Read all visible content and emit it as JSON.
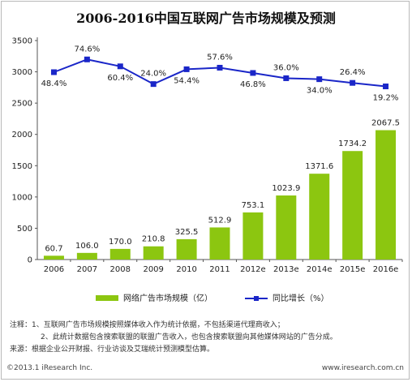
{
  "chart_data": {
    "type": "bar+line",
    "title": "2006-2016中国互联网广告市场规模及预测",
    "categories": [
      "2006",
      "2007",
      "2008",
      "2009",
      "2010",
      "2011",
      "2012e",
      "2013e",
      "2014e",
      "2015e",
      "2016e"
    ],
    "series": [
      {
        "name": "网络广告市场规模（亿）",
        "type": "bar",
        "axis": "left",
        "values": [
          60.7,
          106.0,
          170.0,
          210.8,
          325.5,
          512.9,
          753.1,
          1023.9,
          1371.6,
          1734.2,
          2067.5
        ],
        "labels": [
          "60.7",
          "106.0",
          "170.0",
          "210.8",
          "325.5",
          "512.9",
          "753.1",
          "1023.9",
          "1371.6",
          "1734.2",
          "2067.5"
        ],
        "color": "#8cc610"
      },
      {
        "name": "同比增长（%）",
        "type": "line",
        "axis": "right",
        "values": [
          48.4,
          74.6,
          60.4,
          24.0,
          54.4,
          57.6,
          46.8,
          36.0,
          34.0,
          26.4,
          19.2
        ],
        "labels": [
          "48.4%",
          "74.6%",
          "60.4%",
          "24.0%",
          "54.4%",
          "57.6%",
          "46.8%",
          "36.0%",
          "34.0%",
          "26.4%",
          "19.2%"
        ],
        "color": "#1a26c8"
      }
    ],
    "yticks": [
      0,
      500,
      1000,
      1500,
      2000,
      2500,
      3000,
      3500
    ],
    "ylim": [
      0,
      3500
    ],
    "grid": false,
    "legend_position": "bottom"
  },
  "notes": [
    "注释：1、互联网广告市场规模按照媒体收入作为统计依据，不包括渠道代理商收入；",
    "2、此统计数据包含搜索联盟的联盟广告收入，也包含搜索联盟向其他媒体网站的广告分成。",
    "来源：根据企业公开财报、行业访谈及艾瑞统计预测模型估算。"
  ],
  "footer": {
    "left": "©2013.1 iResearch Inc.",
    "right": "www.iresearch.com.cn"
  }
}
